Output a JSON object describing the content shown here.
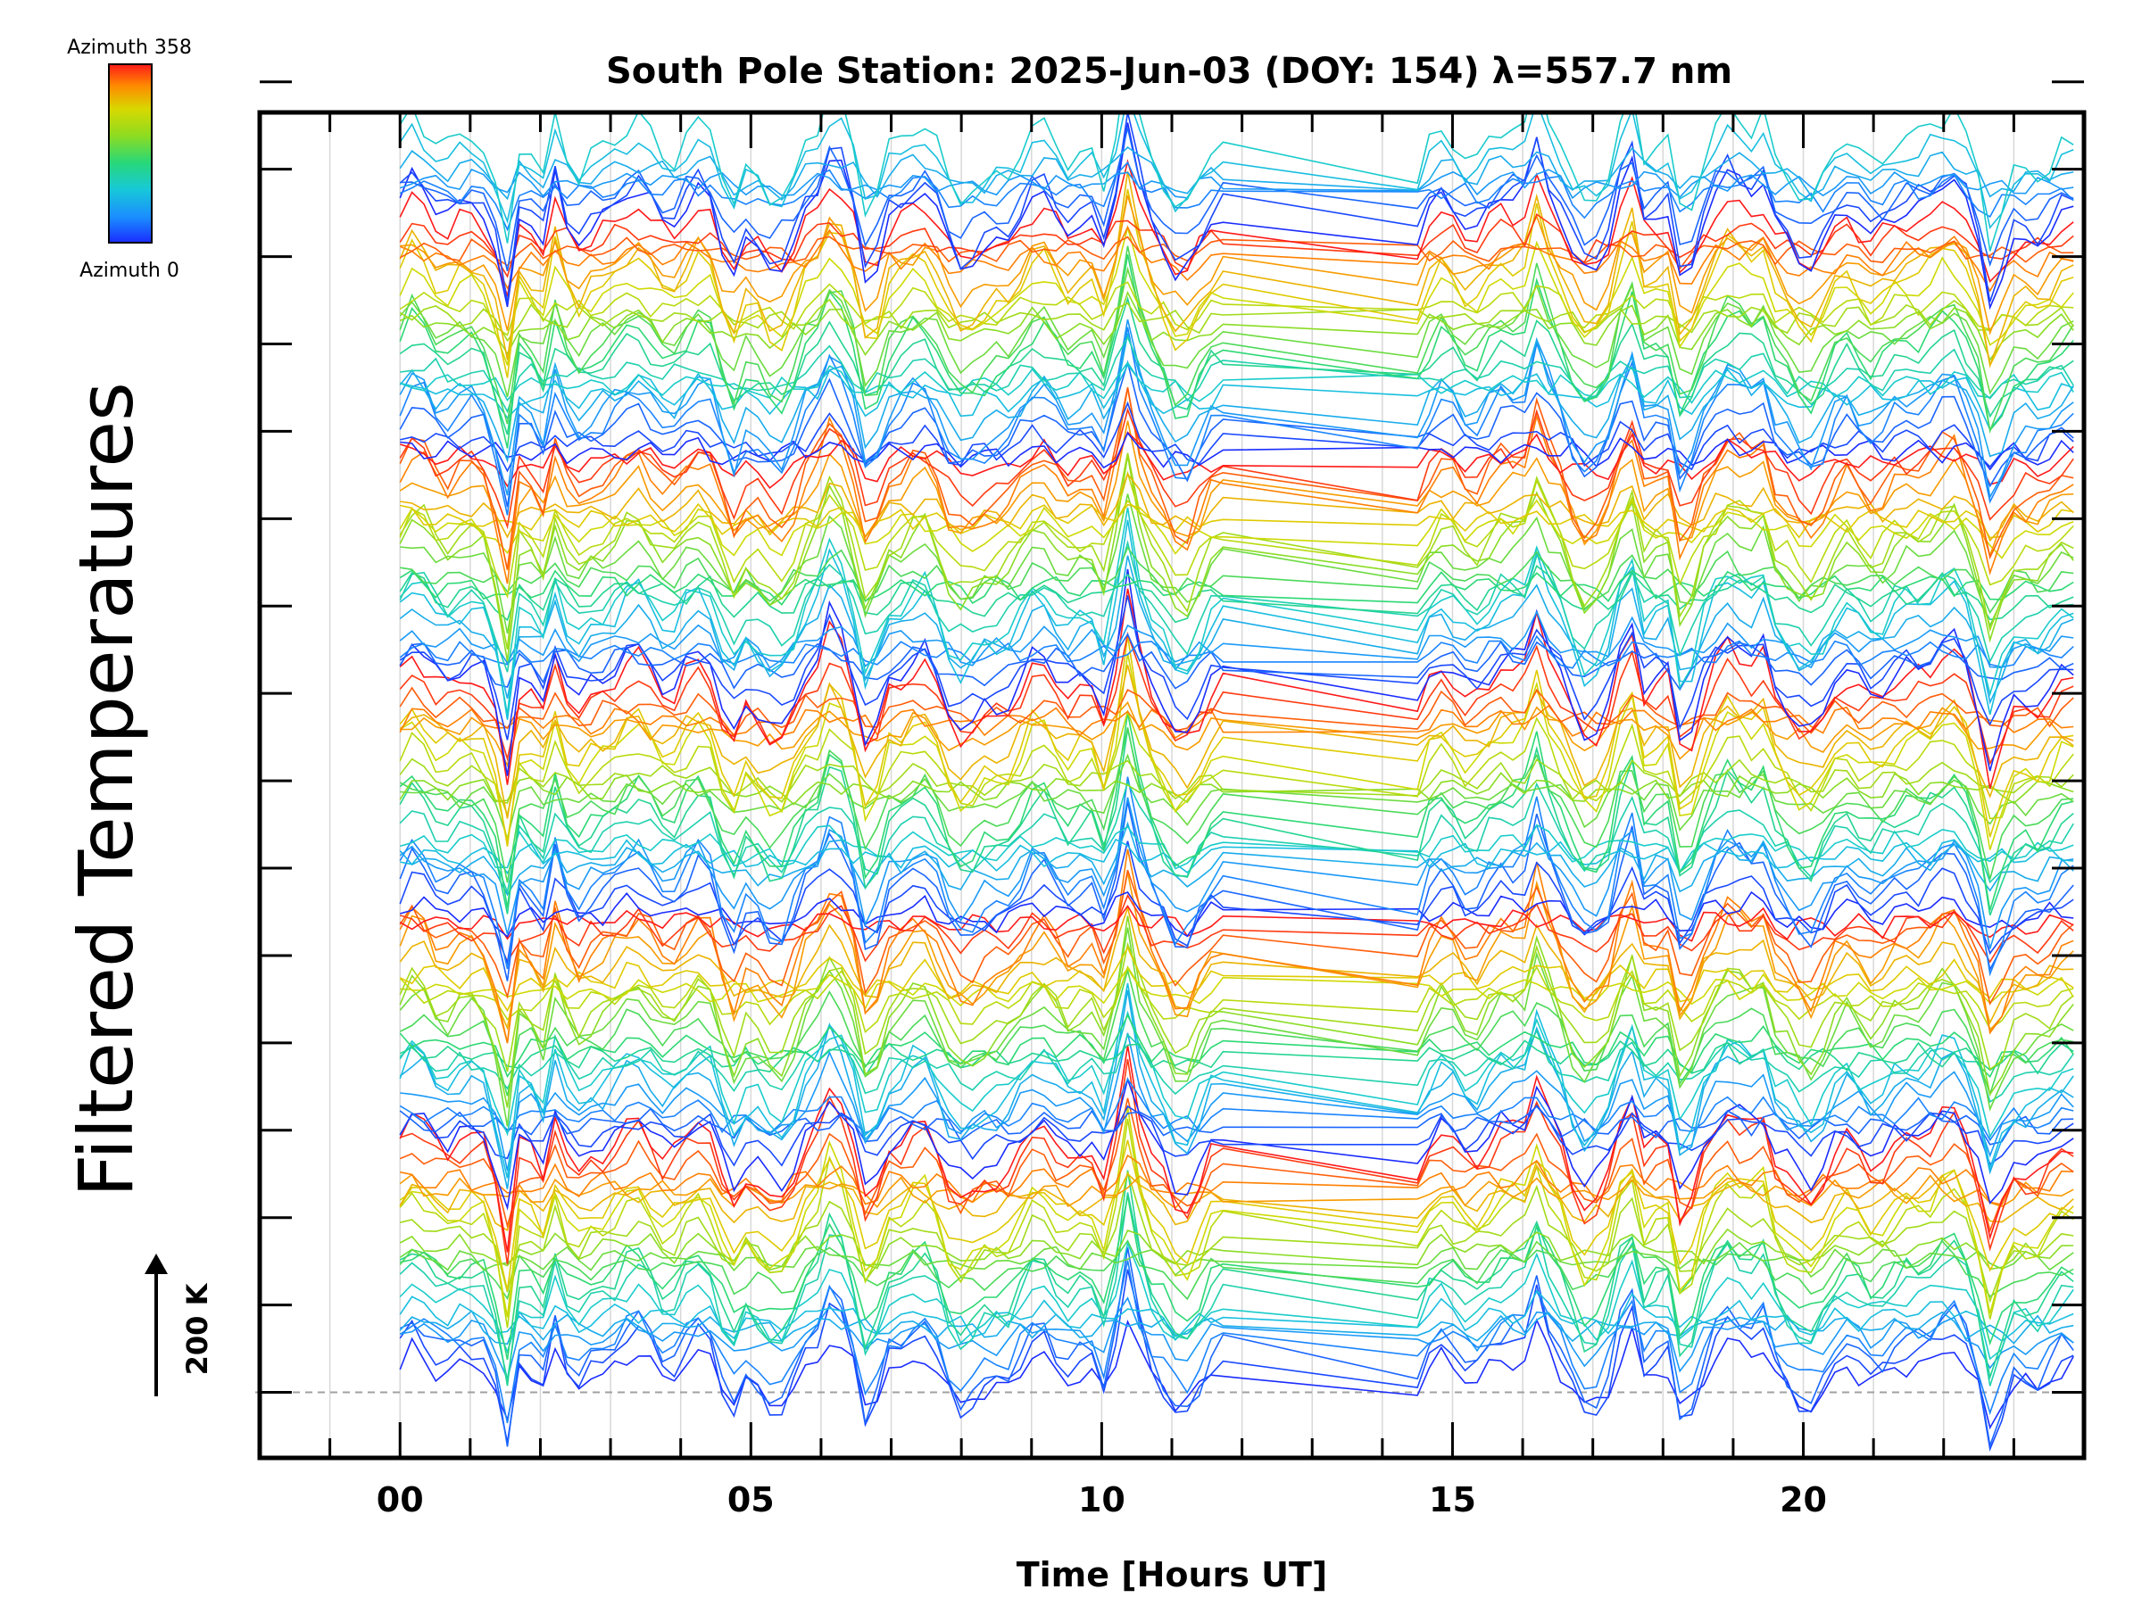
{
  "chart_data": {
    "type": "line",
    "title": "South Pole Station: 2025-Jun-03 (DOY: 154) λ=557.7 nm",
    "xlabel": "Time [Hours UT]",
    "ylabel": "Filtered Temperatures",
    "xlim": [
      -2,
      24
    ],
    "x_major_ticks": [
      0,
      5,
      10,
      15,
      20
    ],
    "x_tick_labels": [
      "00",
      "05",
      "10",
      "15",
      "20"
    ],
    "x_minor_step": 1,
    "y_ticks": [
      0,
      200,
      400,
      600,
      800,
      1000,
      1200,
      1400,
      1600,
      1800,
      2000,
      2200,
      2400,
      2600,
      2800,
      3000
    ],
    "ylim": [
      -150,
      2930
    ],
    "baseline": 0,
    "scale_bar": {
      "label": "200 K",
      "value": 200
    },
    "colorbar": {
      "top_label": "Azimuth  358",
      "bottom_label": "Azimuth  0",
      "min": 0,
      "max": 358
    },
    "data_gap_hours": [
      11.8,
      14.5
    ],
    "n_traces": 128,
    "trace_offset": 22,
    "block_size": 24,
    "colors": {
      "axis": "#000000",
      "grid": "#d8d8d8",
      "baseline": "#a0a0a0",
      "colormap": [
        "#1a2cff",
        "#1a8cff",
        "#18c9d8",
        "#28d878",
        "#8edc20",
        "#d8d800",
        "#ff8a00",
        "#ff1a1a"
      ]
    }
  }
}
